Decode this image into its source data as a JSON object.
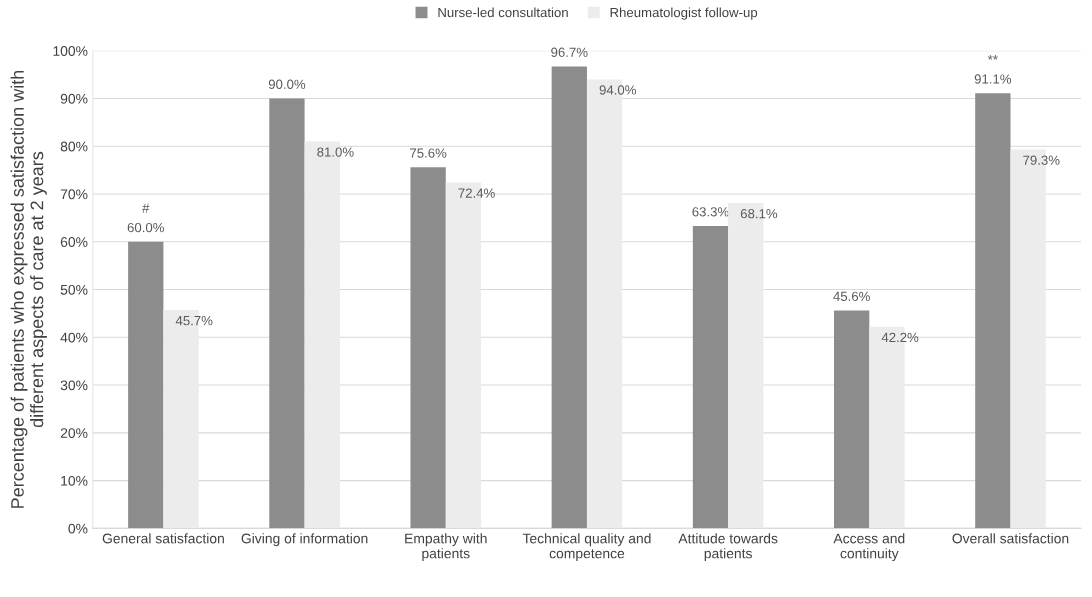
{
  "chart_data": {
    "type": "bar",
    "ylabel": "Percentage of patients who expressed satisfaction with\ndifferent aspects of care at 2 years",
    "categories": [
      "General satisfaction",
      "Giving of information",
      "Empathy with\npatients",
      "Technical quality and\ncompetence",
      "Attitude towards\npatients",
      "Access and\ncontinuity",
      "Overall satisfaction"
    ],
    "series": [
      {
        "name": "Nurse-led consultation",
        "color": "#8c8c8c",
        "values": [
          60.0,
          90.0,
          75.6,
          96.7,
          63.3,
          45.6,
          91.1
        ]
      },
      {
        "name": "Rheumatologist follow-up",
        "color": "#ececec",
        "values": [
          45.7,
          81.0,
          72.4,
          94.0,
          68.1,
          42.2,
          79.3
        ]
      }
    ],
    "ylim": [
      0,
      100
    ],
    "yticks": [
      {
        "value": 0,
        "label": "0%"
      },
      {
        "value": 10,
        "label": "10%"
      },
      {
        "value": 20,
        "label": "20%"
      },
      {
        "value": 30,
        "label": "30%"
      },
      {
        "value": 40,
        "label": "40%"
      },
      {
        "value": 50,
        "label": "50%"
      },
      {
        "value": 60,
        "label": "60%"
      },
      {
        "value": 70,
        "label": "70%"
      },
      {
        "value": 80,
        "label": "80%"
      },
      {
        "value": 90,
        "label": "90%"
      },
      {
        "value": 100,
        "label": "100%"
      }
    ],
    "value_labels": [
      [
        "60.0%",
        "90.0%",
        "75.6%",
        "96.7%",
        "63.3%",
        "45.6%",
        "91.1%"
      ],
      [
        "45.7%",
        "81.0%",
        "72.4%",
        "94.0%",
        "68.1%",
        "42.2%",
        "79.3%"
      ]
    ],
    "annotations": [
      {
        "text": "#",
        "x": "General satisfaction",
        "y": 60.0
      },
      {
        "text": "**",
        "x": "Overall satisfaction",
        "y": 91.1
      }
    ],
    "grid": "y",
    "legend": "top"
  }
}
